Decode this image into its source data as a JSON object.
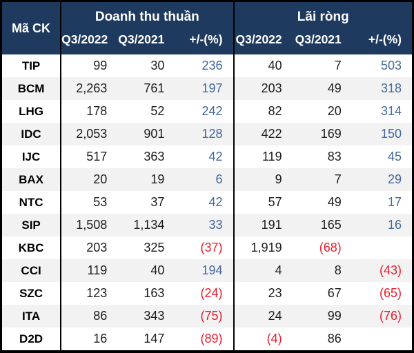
{
  "colors": {
    "header_bg": "#1F3A5F",
    "positive_change": "#44679B",
    "negative": "#EA1C2C",
    "stripe": "#F2F2F2",
    "text": "#1C1C1C",
    "border": "#000000"
  },
  "chart_data": {
    "type": "table",
    "corner_header": "Mã CK",
    "column_groups": [
      {
        "label": "Doanh thu thuần",
        "columns": [
          "Q3/2022",
          "Q3/2021",
          "+/-(%)"
        ]
      },
      {
        "label": "Lãi ròng",
        "columns": [
          "Q3/2022",
          "Q3/2021",
          "+/-(%)"
        ]
      }
    ],
    "rows": [
      {
        "code": "TIP",
        "values": [
          "99",
          "30",
          "236",
          "40",
          "7",
          "503"
        ]
      },
      {
        "code": "BCM",
        "values": [
          "2,263",
          "761",
          "197",
          "203",
          "49",
          "318"
        ]
      },
      {
        "code": "LHG",
        "values": [
          "178",
          "52",
          "242",
          "82",
          "20",
          "314"
        ]
      },
      {
        "code": "IDC",
        "values": [
          "2,053",
          "901",
          "128",
          "422",
          "169",
          "150"
        ]
      },
      {
        "code": "IJC",
        "values": [
          "517",
          "363",
          "42",
          "119",
          "83",
          "45"
        ]
      },
      {
        "code": "BAX",
        "values": [
          "20",
          "19",
          "6",
          "9",
          "7",
          "29"
        ]
      },
      {
        "code": "NTC",
        "values": [
          "53",
          "37",
          "42",
          "57",
          "49",
          "17"
        ]
      },
      {
        "code": "SIP",
        "values": [
          "1,508",
          "1,134",
          "33",
          "191",
          "165",
          "16"
        ]
      },
      {
        "code": "KBC",
        "values": [
          "203",
          "325",
          "(37)",
          "1,919",
          "(68)",
          ""
        ]
      },
      {
        "code": "CCI",
        "values": [
          "119",
          "40",
          "194",
          "4",
          "8",
          "(43)"
        ]
      },
      {
        "code": "SZC",
        "values": [
          "123",
          "163",
          "(24)",
          "23",
          "67",
          "(65)"
        ]
      },
      {
        "code": "ITA",
        "values": [
          "86",
          "343",
          "(75)",
          "24",
          "99",
          "(76)"
        ]
      },
      {
        "code": "D2D",
        "values": [
          "16",
          "147",
          "(89)",
          "(4)",
          "86",
          ""
        ]
      }
    ]
  }
}
